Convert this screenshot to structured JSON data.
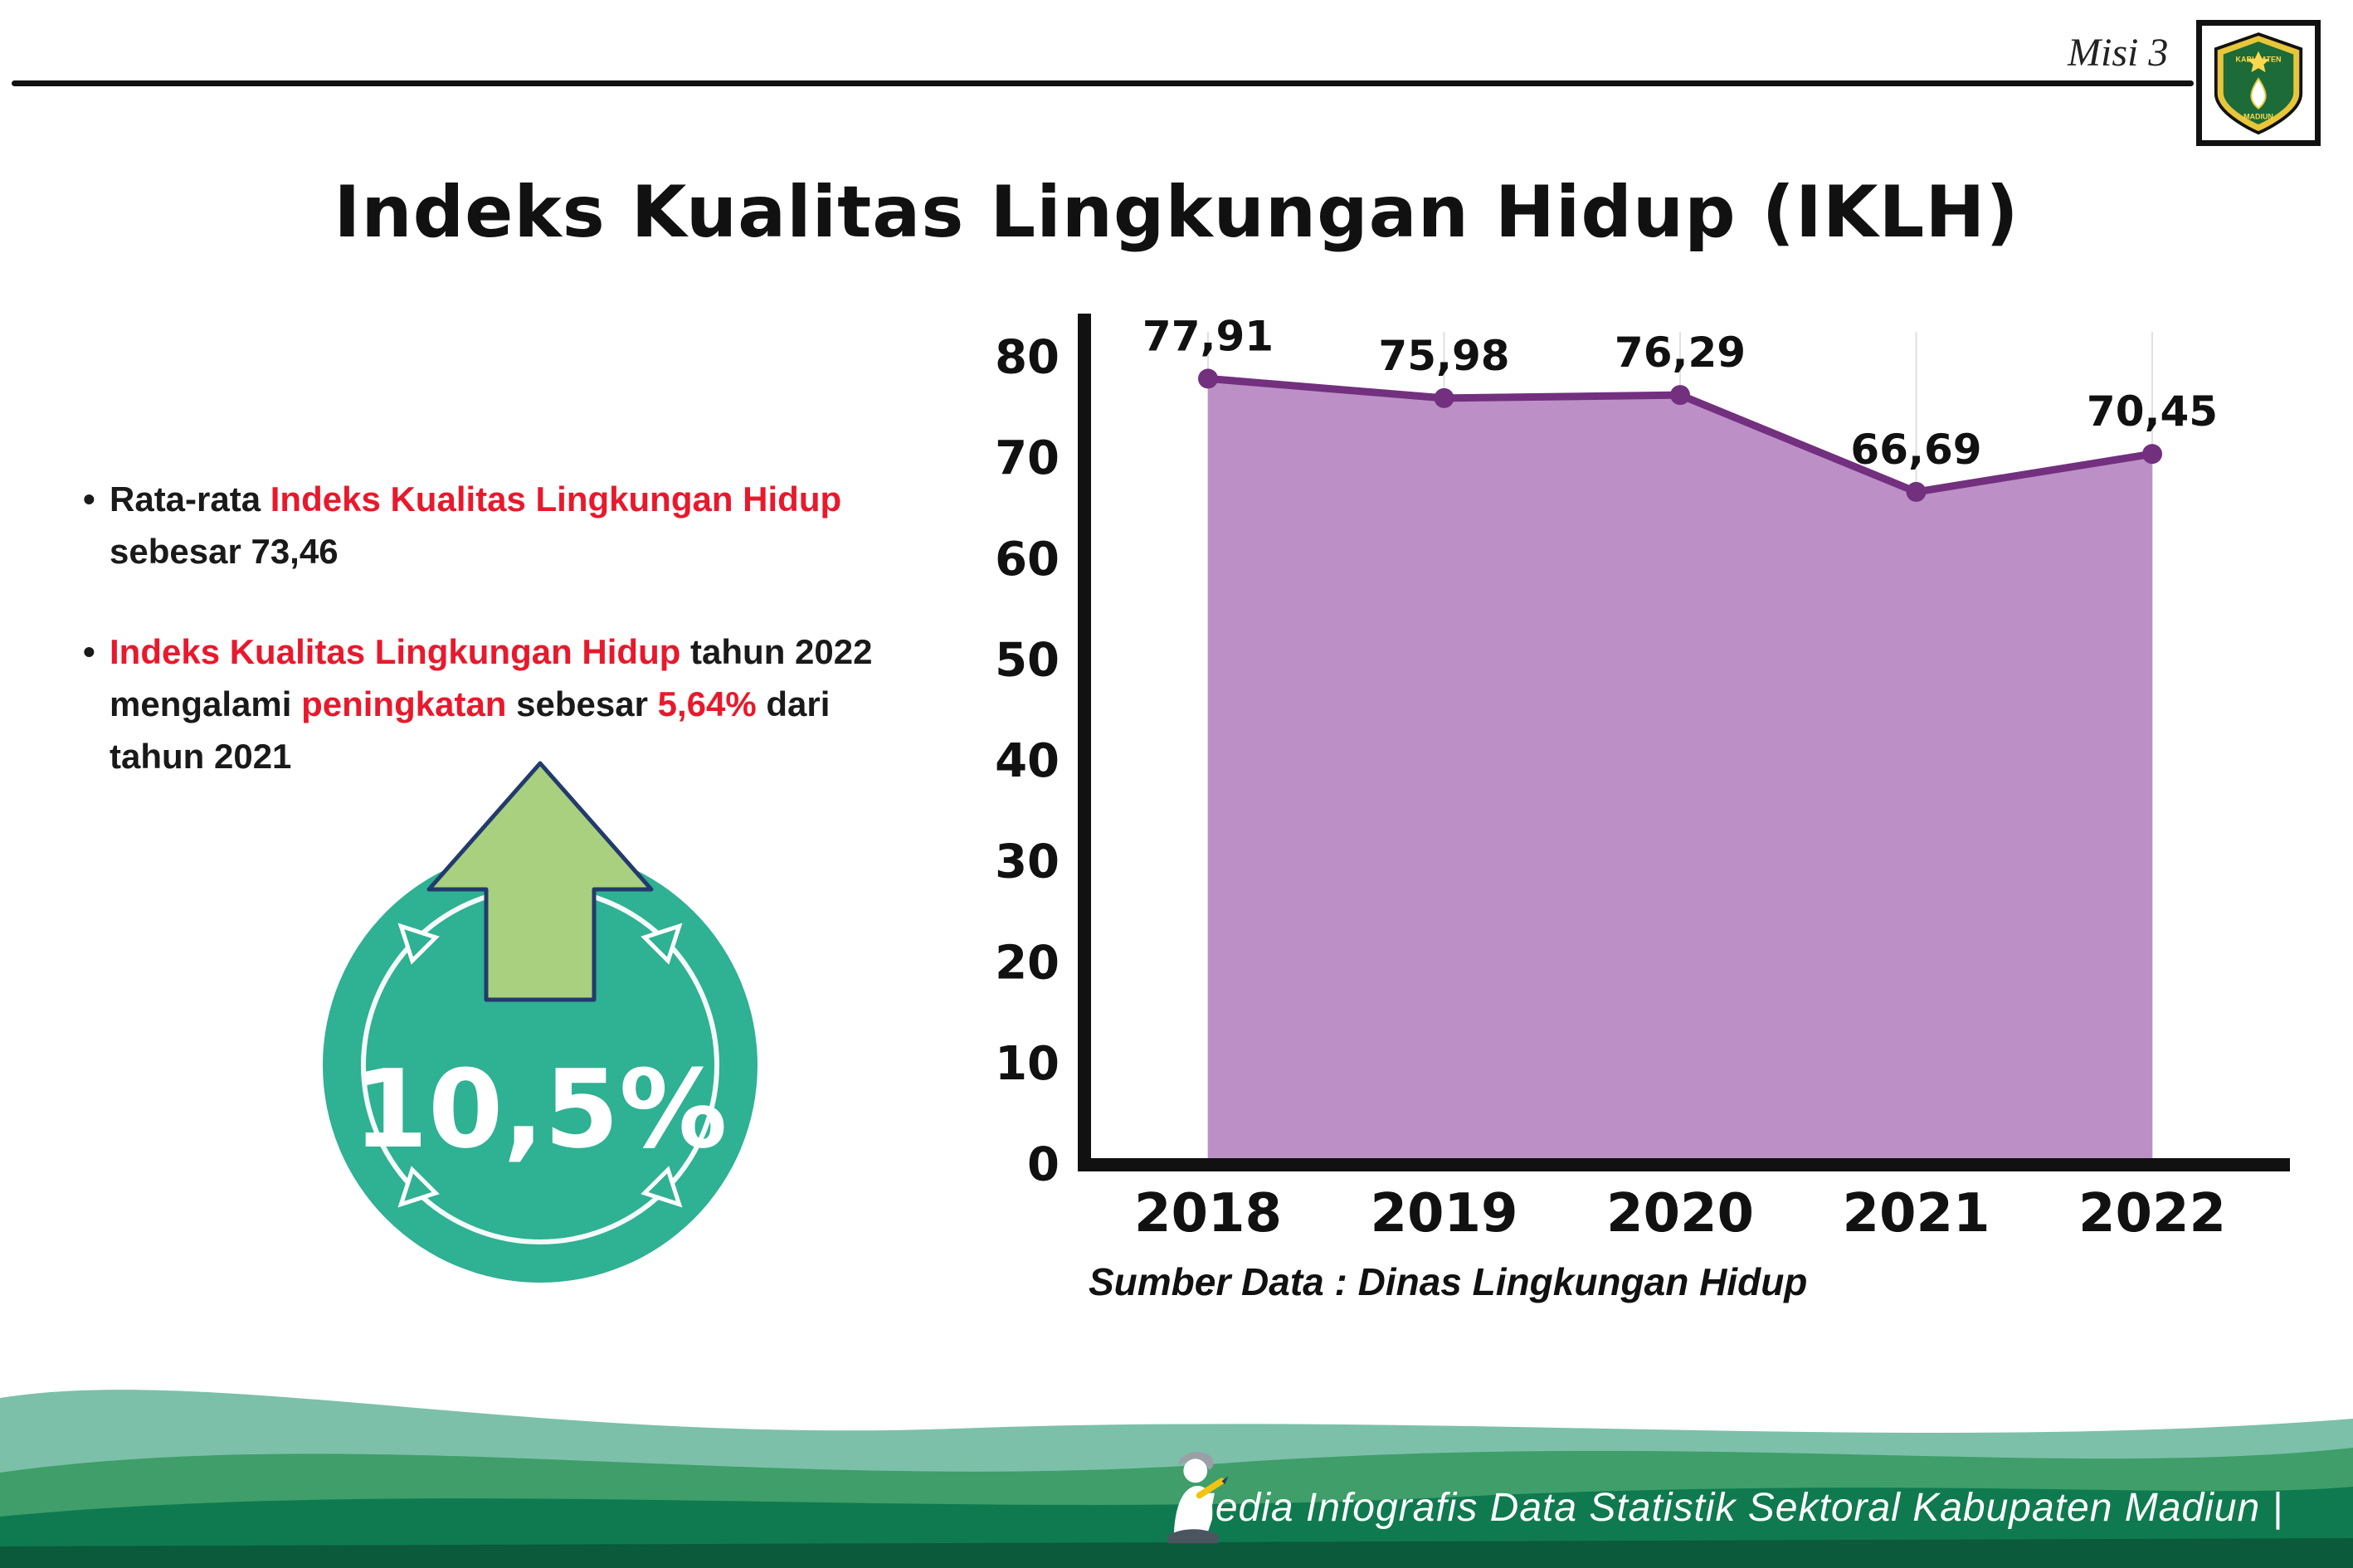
{
  "meta": {
    "misi_label": "Misi 3"
  },
  "title": "Indeks Kualitas Lingkungan Hidup (IKLH)",
  "logo": {
    "top_label": "KABUPATEN",
    "bottom_label": "MADIUN"
  },
  "bullets": [
    {
      "segments": [
        {
          "text": "Rata-rata ",
          "red": false
        },
        {
          "text": "Indeks Kualitas Lingkungan Hidup",
          "red": true
        },
        {
          "text": " sebesar 73,46",
          "red": false
        }
      ]
    },
    {
      "segments": [
        {
          "text": "Indeks Kualitas Lingkungan Hidup",
          "red": true
        },
        {
          "text": " tahun 2022 mengalami ",
          "red": false
        },
        {
          "text": "peningkatan",
          "red": true
        },
        {
          "text": " sebesar ",
          "red": false
        },
        {
          "text": "5,64%",
          "red": true
        },
        {
          "text": " dari tahun 2021",
          "red": false
        }
      ]
    }
  ],
  "badge": {
    "value": "10,5%"
  },
  "chart_data": {
    "type": "area",
    "title": "",
    "categories": [
      "2018",
      "2019",
      "2020",
      "2021",
      "2022"
    ],
    "values": [
      77.91,
      75.98,
      76.29,
      66.69,
      70.45
    ],
    "value_labels": [
      "77,91",
      "75,98",
      "76,29",
      "66,69",
      "70,45"
    ],
    "ylim": [
      0,
      80
    ],
    "yticks": [
      0,
      10,
      20,
      30,
      40,
      50,
      60,
      70,
      80
    ],
    "grid": "faint-vertical",
    "legend": "none",
    "fill_color": "#bc90c6",
    "line_color": "#72307f",
    "source": "Sumber Data : Dinas Lingkungan Hidup"
  },
  "footer": {
    "text": "Media Infografis Data Statistik Sektoral Kabupaten Madiun |"
  },
  "colors": {
    "accent_red": "#e8192c",
    "badge_teal": "#2fb193",
    "badge_arrow_green": "#a9d07e",
    "wave_light": "#7cc0aa",
    "wave_mid": "#3f9e69",
    "wave_dark": "#0f7a4f",
    "wave_strip": "#0a5a3b"
  }
}
